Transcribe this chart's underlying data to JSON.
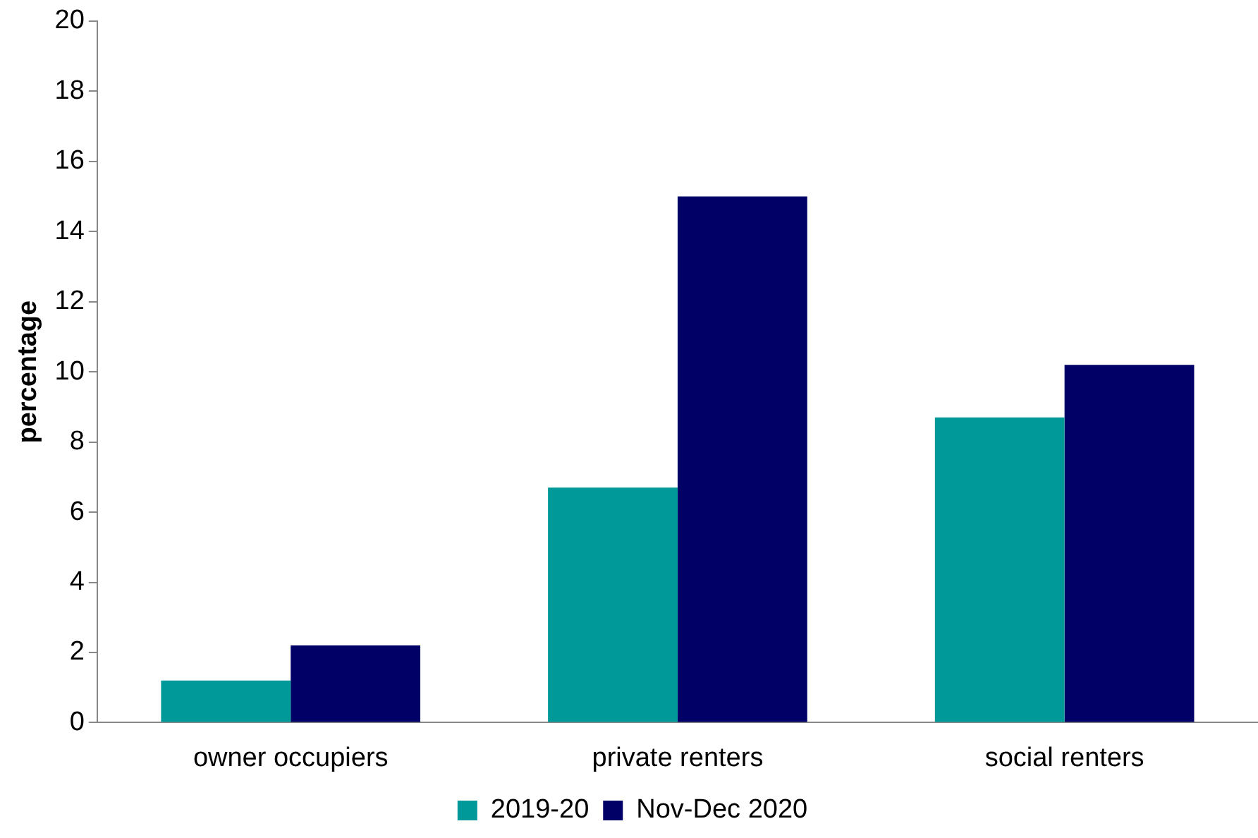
{
  "chart_data": {
    "type": "bar",
    "ylabel": "percentage",
    "categories": [
      "owner occupiers",
      "private renters",
      "social renters"
    ],
    "series": [
      {
        "name": "2019-20",
        "color": "#009999",
        "values": [
          1.2,
          6.7,
          8.7
        ]
      },
      {
        "name": "Nov-Dec 2020",
        "color": "#000066",
        "values": [
          2.2,
          15.0,
          10.2
        ]
      }
    ],
    "ylim": [
      0,
      20
    ],
    "yticks": [
      0,
      2,
      4,
      6,
      8,
      10,
      12,
      14,
      16,
      18,
      20
    ],
    "grid": false,
    "legend": "bottom"
  }
}
